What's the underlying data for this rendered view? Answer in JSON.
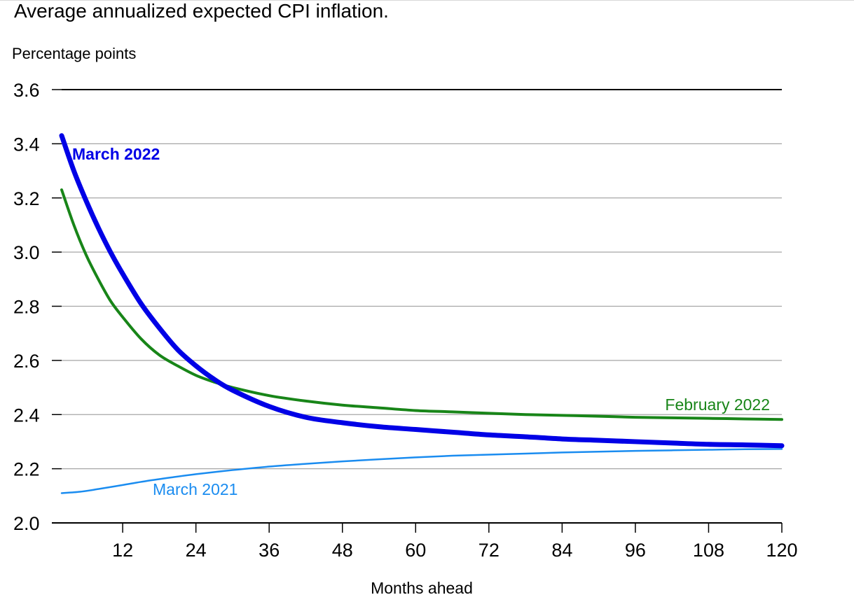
{
  "chart_data": {
    "type": "line",
    "title": "Average annualized expected CPI inflation.",
    "ylabel": "Percentage points",
    "xlabel": "Months ahead",
    "xlim": [
      2,
      120
    ],
    "ylim": [
      2.0,
      3.6
    ],
    "x_ticks": [
      12,
      24,
      36,
      48,
      60,
      72,
      84,
      96,
      108,
      120
    ],
    "y_ticks": [
      2.0,
      2.2,
      2.4,
      2.6,
      2.8,
      3.0,
      3.2,
      3.4,
      3.6
    ],
    "y_tick_labels": [
      "2.0",
      "2.2",
      "2.4",
      "2.6",
      "2.8",
      "3.0",
      "3.2",
      "3.4",
      "3.6"
    ],
    "grid": true,
    "series": [
      {
        "name": "March 2022",
        "color": "#0000e6",
        "label_bold": true,
        "x": [
          2,
          4,
          6,
          8,
          10,
          12,
          15,
          18,
          21,
          24,
          27,
          30,
          36,
          42,
          48,
          54,
          60,
          66,
          72,
          78,
          84,
          90,
          96,
          102,
          108,
          114,
          120
        ],
        "y": [
          3.43,
          3.3,
          3.19,
          3.09,
          3.0,
          2.92,
          2.81,
          2.72,
          2.64,
          2.58,
          2.53,
          2.49,
          2.43,
          2.39,
          2.37,
          2.355,
          2.345,
          2.335,
          2.325,
          2.318,
          2.31,
          2.305,
          2.3,
          2.295,
          2.29,
          2.288,
          2.285
        ]
      },
      {
        "name": "February 2022",
        "color": "#188518",
        "label_bold": false,
        "x": [
          2,
          4,
          6,
          8,
          10,
          12,
          15,
          18,
          21,
          24,
          27,
          30,
          36,
          42,
          48,
          54,
          60,
          66,
          72,
          78,
          84,
          90,
          96,
          102,
          108,
          114,
          120
        ],
        "y": [
          3.23,
          3.1,
          2.99,
          2.9,
          2.82,
          2.76,
          2.68,
          2.62,
          2.58,
          2.545,
          2.52,
          2.5,
          2.47,
          2.45,
          2.435,
          2.425,
          2.415,
          2.41,
          2.405,
          2.4,
          2.397,
          2.394,
          2.39,
          2.388,
          2.386,
          2.384,
          2.382
        ]
      },
      {
        "name": "March 2021",
        "color": "#1a8cf0",
        "label_bold": false,
        "x": [
          2,
          5,
          8,
          12,
          16,
          20,
          24,
          30,
          36,
          42,
          48,
          54,
          60,
          66,
          72,
          78,
          84,
          90,
          96,
          102,
          108,
          114,
          120
        ],
        "y": [
          2.11,
          2.115,
          2.125,
          2.14,
          2.155,
          2.168,
          2.18,
          2.195,
          2.208,
          2.218,
          2.227,
          2.235,
          2.242,
          2.248,
          2.252,
          2.256,
          2.26,
          2.263,
          2.266,
          2.268,
          2.27,
          2.272,
          2.273
        ]
      }
    ],
    "annotations": [
      {
        "text": "March 2022",
        "series": 0
      },
      {
        "text": "February 2022",
        "series": 1
      },
      {
        "text": "March 2021",
        "series": 2
      }
    ]
  }
}
